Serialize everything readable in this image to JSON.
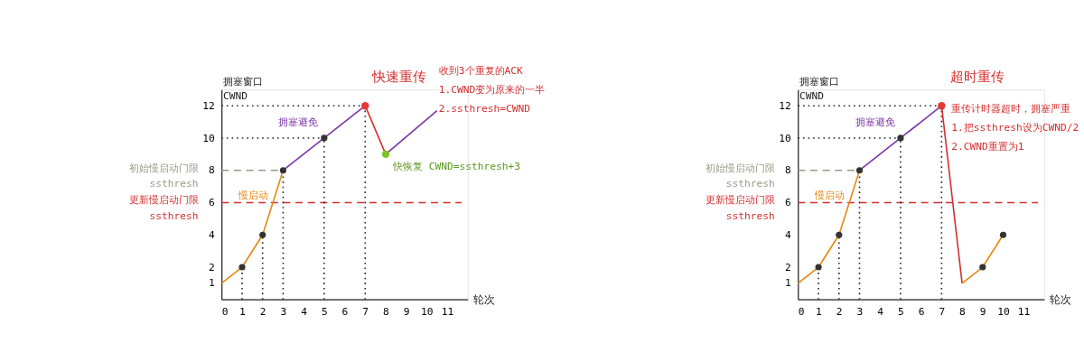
{
  "chart_data": [
    {
      "type": "line",
      "xlabel": "轮次",
      "ylabel": "拥塞窗口\nCWND",
      "xlim": [
        0,
        12
      ],
      "ylim": [
        0,
        13
      ],
      "xticks": [
        0,
        1,
        2,
        3,
        4,
        5,
        6,
        7,
        8,
        9,
        10,
        11
      ],
      "yticks": [
        1,
        2,
        4,
        6,
        8,
        10,
        12
      ],
      "grid": false,
      "line_style": "solid",
      "series": [
        {
          "color": "#e8870e",
          "x": [
            0,
            1,
            2,
            3
          ],
          "values": [
            1,
            2,
            4,
            8
          ]
        },
        {
          "color": "#7d35a8",
          "x": [
            3,
            5,
            7
          ],
          "values": [
            8,
            10,
            12
          ]
        },
        {
          "color": "#d42f2f",
          "x": [
            7,
            8
          ],
          "values": [
            12,
            9
          ]
        },
        {
          "color": "#7d35a8",
          "x": [
            8,
            10.5
          ],
          "values": [
            9,
            11.7
          ]
        },
        {
          "type": "scatter",
          "color": "#333333",
          "x": [
            1,
            2,
            3,
            5
          ],
          "values": [
            2,
            4,
            8,
            10
          ]
        },
        {
          "type": "scatter",
          "color": "#e53935",
          "x": [
            7
          ],
          "values": [
            12
          ]
        },
        {
          "type": "scatter",
          "color": "#7cc424",
          "x": [
            8
          ],
          "values": [
            9
          ]
        }
      ],
      "ref_lines": [
        {
          "axis": "y",
          "value": 6,
          "label": "更新慢启动门限\nssthresh",
          "color": "#d42f2f",
          "line_style": "dashed"
        },
        {
          "axis": "y",
          "value": 8,
          "label": "初始慢启动门限\nssthresh",
          "color": "#9a9a86",
          "line_style": "dashed"
        },
        {
          "axis": "y",
          "value": 12,
          "color": "#222222",
          "line_style": "dotted"
        },
        {
          "axis": "y",
          "value": 10,
          "color": "#222222",
          "line_style": "dotted"
        },
        {
          "axis": "x",
          "value": 1,
          "color": "#222222",
          "line_style": "dotted"
        },
        {
          "axis": "x",
          "value": 2,
          "color": "#222222",
          "line_style": "dotted"
        },
        {
          "axis": "x",
          "value": 3,
          "color": "#222222",
          "line_style": "dotted"
        },
        {
          "axis": "x",
          "value": 5,
          "color": "#222222",
          "line_style": "dotted"
        },
        {
          "axis": "x",
          "value": 7,
          "color": "#222222",
          "line_style": "dotted"
        }
      ],
      "annotations": [
        {
          "text": "快速重传",
          "x": 7,
          "y": 12
        },
        "收到3个重复的ACK\n1.CWND变为原来的一半\n2.ssthresh=CWND",
        {
          "text": "快恢复 CWND=ssthresh+3",
          "x": 8,
          "y": 9
        },
        {
          "text": "拥塞避免",
          "x": 5,
          "y": 10
        },
        {
          "text": "慢启动",
          "x": 3,
          "y": 8
        }
      ]
    },
    {
      "type": "line",
      "xlabel": "轮次",
      "ylabel": "拥塞窗口\nCWND",
      "xlim": [
        0,
        12
      ],
      "ylim": [
        0,
        13
      ],
      "xticks": [
        0,
        1,
        2,
        3,
        4,
        5,
        6,
        7,
        8,
        9,
        10,
        11
      ],
      "yticks": [
        1,
        2,
        4,
        6,
        8,
        10,
        12
      ],
      "grid": false,
      "line_style": "solid",
      "series": [
        {
          "color": "#e8870e",
          "x": [
            0,
            1,
            2,
            3
          ],
          "values": [
            1,
            2,
            4,
            8
          ]
        },
        {
          "color": "#7d35a8",
          "x": [
            3,
            5,
            7
          ],
          "values": [
            8,
            10,
            12
          ]
        },
        {
          "color": "#d42f2f",
          "x": [
            7,
            8
          ],
          "values": [
            12,
            1
          ]
        },
        {
          "color": "#e8870e",
          "x": [
            8,
            9,
            10
          ],
          "values": [
            1,
            2,
            4
          ]
        },
        {
          "type": "scatter",
          "color": "#333333",
          "x": [
            1,
            2,
            3,
            5,
            9,
            10
          ],
          "values": [
            2,
            4,
            8,
            10,
            2,
            4
          ]
        },
        {
          "type": "scatter",
          "color": "#e53935",
          "x": [
            7
          ],
          "values": [
            12
          ]
        }
      ],
      "ref_lines": [
        {
          "axis": "y",
          "value": 6,
          "label": "更新慢启动门限\nssthresh",
          "color": "#d42f2f",
          "line_style": "dashed"
        },
        {
          "axis": "y",
          "value": 8,
          "label": "初始慢启动门限\nssthresh",
          "color": "#9a9a86",
          "line_style": "dashed"
        },
        {
          "axis": "y",
          "value": 12,
          "color": "#222222",
          "line_style": "dotted"
        },
        {
          "axis": "y",
          "value": 10,
          "color": "#222222",
          "line_style": "dotted"
        },
        {
          "axis": "x",
          "value": 1,
          "color": "#222222",
          "line_style": "dotted"
        },
        {
          "axis": "x",
          "value": 2,
          "color": "#222222",
          "line_style": "dotted"
        },
        {
          "axis": "x",
          "value": 3,
          "color": "#222222",
          "line_style": "dotted"
        },
        {
          "axis": "x",
          "value": 5,
          "color": "#222222",
          "line_style": "dotted"
        },
        {
          "axis": "x",
          "value": 7,
          "color": "#222222",
          "line_style": "dotted"
        }
      ],
      "annotations": [
        {
          "text": "超时重传",
          "x": 7,
          "y": 12
        },
        "重传计时器超时，拥塞严重\n1.把ssthresh设为CWND/2\n2.CWND重置为1",
        {
          "text": "拥塞避免",
          "x": 5,
          "y": 10
        },
        {
          "text": "慢启动",
          "x": 3,
          "y": 8
        }
      ]
    }
  ]
}
